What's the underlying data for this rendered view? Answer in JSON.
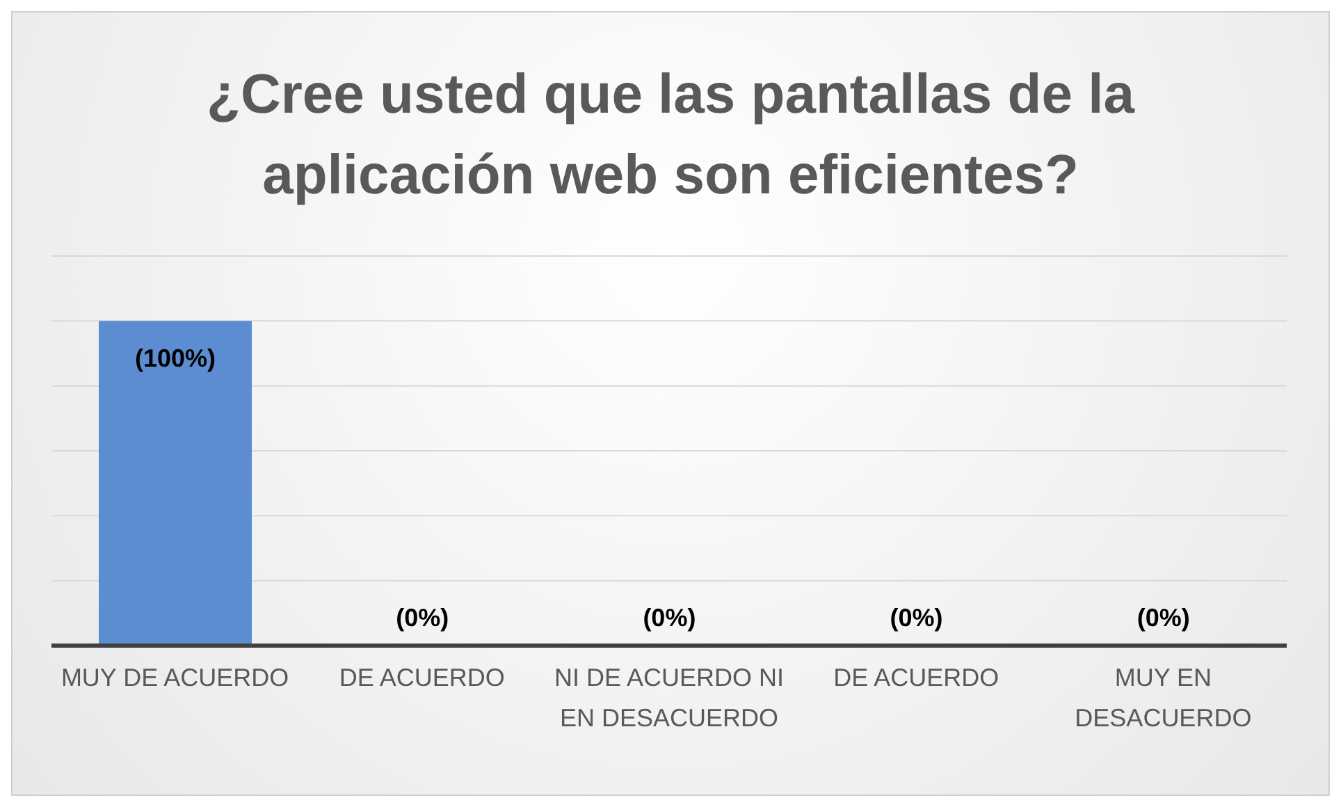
{
  "chart_data": {
    "type": "bar",
    "title": "¿Cree usted que las pantallas de la aplicación web son eficientes?",
    "categories": [
      "MUY DE ACUERDO",
      "DE ACUERDO",
      "NI DE ACUERDO NI EN DESACUERDO",
      "DE ACUERDO",
      "MUY EN DESACUERDO"
    ],
    "values": [
      100,
      0,
      0,
      0,
      0
    ],
    "color": "#5b8dd0",
    "value_labels": [
      "(100%)",
      "(0%)",
      "(0%)",
      "(0%)",
      "(0%)"
    ],
    "grid": "y",
    "tick_labels": "x"
  }
}
